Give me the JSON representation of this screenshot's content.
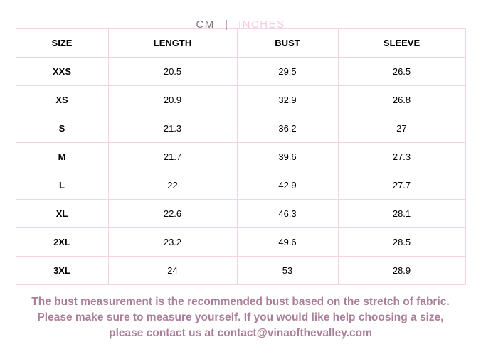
{
  "unit_toggle": {
    "cm_label": "CM",
    "divider": "|",
    "inches_label": "INCHES",
    "active_unit": "CM"
  },
  "table": {
    "columns": [
      "SIZE",
      "LENGTH",
      "BUST",
      "SLEEVE"
    ],
    "rows": [
      [
        "XXS",
        "20.5",
        "29.5",
        "26.5"
      ],
      [
        "XS",
        "20.9",
        "32.9",
        "26.8"
      ],
      [
        "S",
        "21.3",
        "36.2",
        "27"
      ],
      [
        "M",
        "21.7",
        "39.6",
        "27.3"
      ],
      [
        "L",
        "22",
        "42.9",
        "27.7"
      ],
      [
        "XL",
        "22.6",
        "46.3",
        "28.1"
      ],
      [
        "2XL",
        "23.2",
        "49.6",
        "28.5"
      ],
      [
        "3XL",
        "24",
        "53",
        "28.9"
      ]
    ]
  },
  "footer": {
    "line1": "The bust measurement is the recommended bust based on the stretch of fabric.",
    "line2": "Please make sure to measure yourself. If you would like help choosing a size,",
    "line3": "please contact us at contact@vinaofthevalley.com",
    "contact_email": "contact@vinaofthevalley.com"
  },
  "colors": {
    "border_pink": "#f7d2e2",
    "active_unit_text": "#847584",
    "inactive_unit_text": "#f5cce0",
    "divider": "#c795ad",
    "footer_text": "#aa7f9a",
    "table_text": "#000000"
  }
}
